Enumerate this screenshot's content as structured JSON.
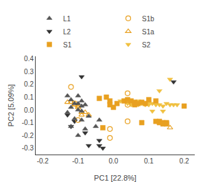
{
  "chart_data": {
    "type": "scatter",
    "xlabel": "PC1 [22.8%]",
    "ylabel": "PC2 [5.09%]",
    "xlim": [
      -0.22,
      0.23
    ],
    "ylim": [
      -0.35,
      0.42
    ],
    "xticks": [
      -0.2,
      -0.1,
      {
        "value": 0.0,
        "label": "0.0"
      },
      0.1,
      0.2
    ],
    "yticks": [
      -0.3,
      -0.2,
      -0.1,
      {
        "value": 0.0,
        "label": "0.0"
      },
      0.1,
      0.2,
      0.3,
      0.4
    ],
    "grid": false,
    "legend": "upper left",
    "series": [
      {
        "name": "L1",
        "color": "#555555",
        "marker": "triangle-up",
        "x": [
          -0.13,
          -0.1,
          -0.12,
          -0.09,
          -0.11,
          -0.1,
          -0.08,
          -0.09,
          -0.12,
          -0.1,
          -0.09,
          -0.13,
          -0.07,
          -0.11,
          -0.09,
          -0.12,
          -0.08,
          -0.1,
          -0.05,
          -0.04
        ],
        "values": [
          0.11,
          0.11,
          0.08,
          0.07,
          0.05,
          0.05,
          0.04,
          0.03,
          0.02,
          0.0,
          -0.01,
          -0.02,
          -0.05,
          -0.07,
          -0.08,
          -0.13,
          -0.15,
          -0.2,
          -0.13,
          -0.08
        ]
      },
      {
        "name": "S1b",
        "color": "#E8A020",
        "marker": "circle-open",
        "x": [
          -0.12,
          -0.11,
          -0.1,
          -0.01,
          -0.01,
          0.04,
          0.04,
          0.04
        ],
        "values": [
          0.18,
          0.05,
          -0.08,
          -0.22,
          -0.15,
          0.13,
          0.04,
          -0.09
        ]
      },
      {
        "name": "L2",
        "color": "#333333",
        "marker": "triangle-down",
        "x": [
          -0.09,
          -0.12,
          -0.13,
          -0.08,
          -0.07,
          -0.04,
          -0.03,
          -0.04,
          -0.11,
          0.17
        ],
        "values": [
          0.26,
          -0.13,
          -0.04,
          -0.18,
          -0.28,
          -0.28,
          -0.3,
          -0.24,
          -0.09,
          0.22
        ]
      },
      {
        "name": "S1a",
        "color": "#E8A020",
        "marker": "triangle-up-open",
        "x": [
          -0.13,
          -0.12,
          -0.11,
          -0.1,
          -0.1,
          -0.09,
          -0.09,
          -0.08,
          -0.07,
          0.16
        ],
        "values": [
          0.06,
          0.06,
          0.04,
          0.03,
          0.02,
          -0.02,
          -0.04,
          -0.02,
          -0.04,
          -0.14
        ]
      },
      {
        "name": "S1",
        "color": "#E8A020",
        "marker": "square",
        "x": [
          -0.04,
          -0.02,
          -0.01,
          -0.01,
          0.0,
          0.01,
          0.03,
          0.04,
          0.05,
          0.06,
          0.06,
          0.07,
          0.08,
          0.09,
          0.1,
          0.12,
          0.12,
          0.13,
          0.13,
          0.14,
          0.14,
          0.15,
          0.15,
          0.2,
          -0.03,
          0.08
        ],
        "values": [
          0.09,
          0.1,
          0.07,
          0.04,
          0.02,
          0.05,
          0.07,
          0.08,
          0.07,
          0.06,
          0.04,
          0.05,
          0.06,
          0.05,
          0.08,
          0.07,
          -0.09,
          -0.09,
          -0.1,
          -0.1,
          -0.11,
          -0.1,
          -0.11,
          0.03,
          -0.14,
          -0.1
        ]
      },
      {
        "name": "S2",
        "color": "#F0C040",
        "marker": "triangle-down",
        "x": [
          0.02,
          0.04,
          0.05,
          0.07,
          0.07,
          0.08,
          0.09,
          0.1,
          0.1,
          0.11,
          0.12,
          0.13,
          0.14,
          0.15,
          0.16,
          0.17,
          0.18,
          0.16,
          0.13,
          0.14,
          0.11
        ],
        "values": [
          0.07,
          0.05,
          0.04,
          0.07,
          0.04,
          0.05,
          0.04,
          0.06,
          0.04,
          0.05,
          0.04,
          0.04,
          0.03,
          0.05,
          0.04,
          0.04,
          0.04,
          0.24,
          0.15,
          -0.01,
          -0.01
        ]
      }
    ]
  }
}
